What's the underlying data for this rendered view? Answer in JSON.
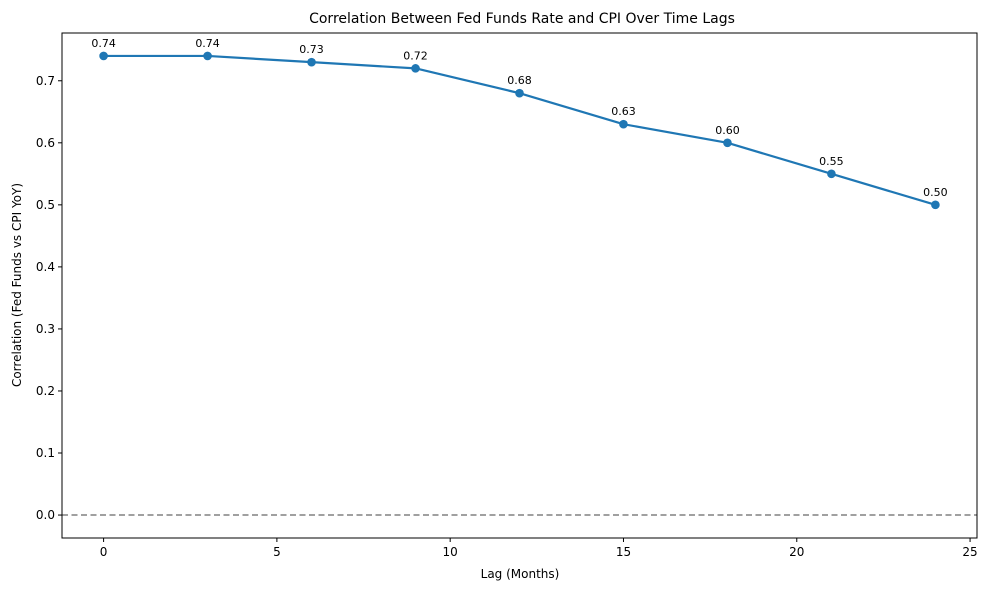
{
  "chart_data": {
    "type": "line",
    "title": "Correlation Between Fed Funds Rate and CPI Over Time Lags",
    "xlabel": "Lag (Months)",
    "ylabel": "Correlation (Fed Funds vs CPI YoY)",
    "xlim": [
      -1.2,
      25.2
    ],
    "ylim": [
      -0.037,
      0.777
    ],
    "xticks": [
      0,
      5,
      10,
      15,
      20,
      25
    ],
    "xtick_labels": [
      "0",
      "5",
      "10",
      "15",
      "20",
      "25"
    ],
    "yticks": [
      0.0,
      0.1,
      0.2,
      0.3,
      0.4,
      0.5,
      0.6,
      0.7
    ],
    "ytick_labels": [
      "0.0",
      "0.1",
      "0.2",
      "0.3",
      "0.4",
      "0.5",
      "0.6",
      "0.7"
    ],
    "grid": false,
    "series": [
      {
        "x": [
          0,
          3,
          6,
          9,
          12,
          15,
          18,
          21,
          24
        ],
        "y": [
          0.74,
          0.74,
          0.73,
          0.72,
          0.68,
          0.63,
          0.6,
          0.55,
          0.5
        ],
        "labels": [
          "0.74",
          "0.74",
          "0.73",
          "0.72",
          "0.68",
          "0.63",
          "0.60",
          "0.55",
          "0.50"
        ],
        "color": "#1f77b4",
        "marker": "circle"
      }
    ],
    "reference_lines": [
      {
        "axis": "y",
        "value": 0.0,
        "style": "dashed",
        "color": "#808080"
      }
    ]
  }
}
